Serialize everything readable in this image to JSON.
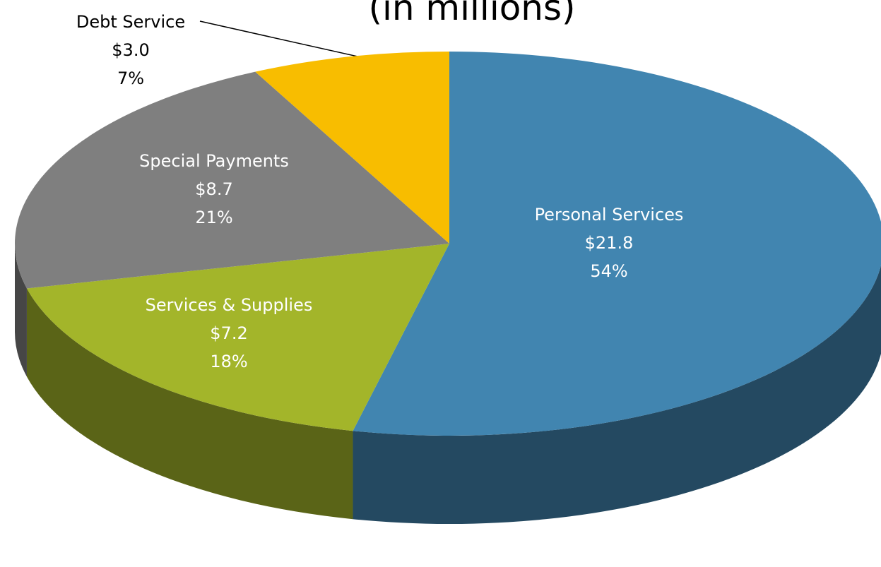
{
  "chart_data": {
    "type": "pie",
    "title": "(in millions)",
    "categories": [
      "Personal Services",
      "Services & Supplies",
      "Special Payments",
      "Debt Service"
    ],
    "values": [
      21.8,
      7.2,
      8.7,
      3.0
    ],
    "value_labels": [
      "$21.8",
      "$7.2",
      "$8.7",
      "$3.0"
    ],
    "percents": [
      54,
      18,
      21,
      7
    ],
    "percent_labels": [
      "54%",
      "18%",
      "21%",
      "7%"
    ],
    "colors": [
      "#4185b0",
      "#a3b52a",
      "#7f7f7f",
      "#f8bd00"
    ]
  }
}
